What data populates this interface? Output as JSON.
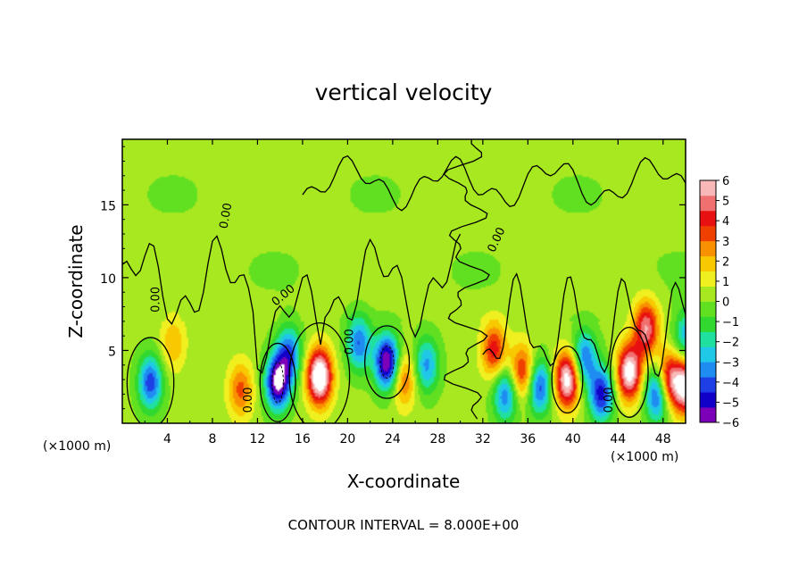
{
  "chart_data": {
    "type": "heatmap",
    "title": "vertical velocity",
    "xlabel": "X-coordinate",
    "ylabel": "Z-coordinate",
    "x_units": "(×1000 m)",
    "x_ticks": [
      4,
      8,
      12,
      16,
      20,
      24,
      28,
      32,
      36,
      40,
      44,
      48
    ],
    "y_ticks": [
      5,
      10,
      15
    ],
    "xlim": [
      0,
      50
    ],
    "ylim": [
      0,
      19.5
    ],
    "colorbar": {
      "ticks": [
        "6",
        "5",
        "4",
        "3",
        "2",
        "1",
        "0",
        "−1",
        "−2",
        "−3",
        "−4",
        "−5",
        "−6"
      ],
      "range": [
        -6,
        6
      ],
      "colors": [
        "#7c00b8",
        "#1000c8",
        "#1e3ee6",
        "#1e8cf0",
        "#20c8e8",
        "#20e0a0",
        "#30d830",
        "#60e020",
        "#a8e820",
        "#f0f020",
        "#f8c800",
        "#f89000",
        "#f04000",
        "#e81010",
        "#f07070",
        "#f8b8b8"
      ]
    },
    "contour_label": "0.00",
    "note": "CONTOUR INTERVAL =  8.000E+00",
    "features": [
      {
        "x": 2.5,
        "z": 2.8,
        "w": -4.5
      },
      {
        "x": 4.5,
        "z": 5.5,
        "w": 2.0
      },
      {
        "x": 10.5,
        "z": 2.3,
        "w": 3.0
      },
      {
        "x": 13.8,
        "z": 2.8,
        "w": -6.5
      },
      {
        "x": 14.8,
        "z": 4.8,
        "w": -4.0
      },
      {
        "x": 17.5,
        "z": 3.2,
        "w": 7.5
      },
      {
        "x": 21.0,
        "z": 5.5,
        "w": -4.0
      },
      {
        "x": 23.5,
        "z": 4.2,
        "w": -6.5
      },
      {
        "x": 25.0,
        "z": 3.0,
        "w": 3.0
      },
      {
        "x": 27.0,
        "z": 4.0,
        "w": -3.5
      },
      {
        "x": 33.0,
        "z": 5.0,
        "w": 4.0
      },
      {
        "x": 34.0,
        "z": 2.0,
        "w": -4.0
      },
      {
        "x": 35.5,
        "z": 3.5,
        "w": 4.0
      },
      {
        "x": 37.0,
        "z": 2.5,
        "w": -4.5
      },
      {
        "x": 39.5,
        "z": 3.0,
        "w": 6.5
      },
      {
        "x": 41.0,
        "z": 4.5,
        "w": -4.0
      },
      {
        "x": 42.5,
        "z": 2.0,
        "w": -5.0
      },
      {
        "x": 45.0,
        "z": 3.5,
        "w": 6.5
      },
      {
        "x": 46.5,
        "z": 6.5,
        "w": 5.0
      },
      {
        "x": 47.5,
        "z": 2.0,
        "w": -5.0
      },
      {
        "x": 48.5,
        "z": 3.0,
        "w": 5.0
      },
      {
        "x": 50.0,
        "z": 2.5,
        "w": 6.0
      },
      {
        "x": 50.0,
        "z": 6.0,
        "w": -3.0
      }
    ],
    "grid": false
  }
}
